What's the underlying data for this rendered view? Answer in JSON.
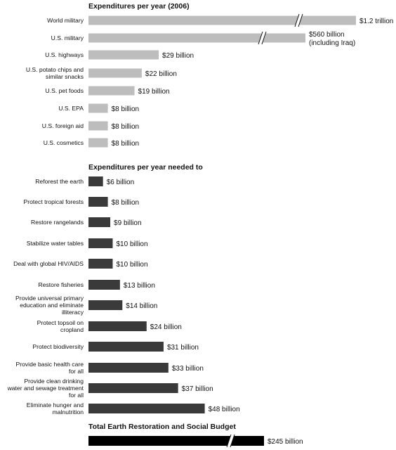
{
  "chart_data": [
    {
      "type": "bar",
      "orientation": "horizontal",
      "title": "Expenditures per year (2006)",
      "unit": "billion dollars",
      "bar_color": "#bdbdbd",
      "categories": [
        "World military",
        "U.S. military",
        "U.S. highways",
        "U.S. potato chips and similar snacks",
        "U.S. pet foods",
        "U.S. EPA",
        "U.S. foreign aid",
        "U.S. cosmetics"
      ],
      "values": [
        1200,
        560,
        29,
        22,
        19,
        8,
        8,
        8
      ],
      "value_labels": [
        "$1.2 trillion",
        "$560 billion (including Iraq)",
        "$29 billion",
        "$22 billion",
        "$19 billion",
        "$8 billion",
        "$8 billion",
        "$8 billion"
      ],
      "axis_breaks": [
        "World military",
        "U.S. military"
      ]
    },
    {
      "type": "bar",
      "orientation": "horizontal",
      "title": "Expenditures per year needed to",
      "unit": "billion dollars",
      "bar_color": "#3a3a3a",
      "categories": [
        "Reforest the earth",
        "Protect tropical forests",
        "Restore rangelands",
        "Stabilize water tables",
        "Deal with global HIV/AIDS",
        "Restore fisheries",
        "Provide universal primary education and eliminate illiteracy",
        "Protect topsoil on cropland",
        "Protect biodiversity",
        "Provide basic health care for all",
        "Provide clean drinking water and sewage treatment for all",
        "Eliminate hunger and malnutrition"
      ],
      "values": [
        6,
        8,
        9,
        10,
        10,
        13,
        14,
        24,
        31,
        33,
        37,
        48
      ],
      "value_labels": [
        "$6 billion",
        "$8 billion",
        "$9 billion",
        "$10 billion",
        "$10 billion",
        "$13 billion",
        "$14 billion",
        "$24 billion",
        "$31 billion",
        "$33 billion",
        "$37 billion",
        "$48 billion"
      ]
    },
    {
      "type": "bar",
      "orientation": "horizontal",
      "title": "Total Earth Restoration and Social Budget",
      "unit": "billion dollars",
      "bar_color": "#000000",
      "categories": [
        ""
      ],
      "values": [
        245
      ],
      "value_labels": [
        "$245 billion"
      ],
      "axis_breaks": [
        ""
      ]
    }
  ]
}
